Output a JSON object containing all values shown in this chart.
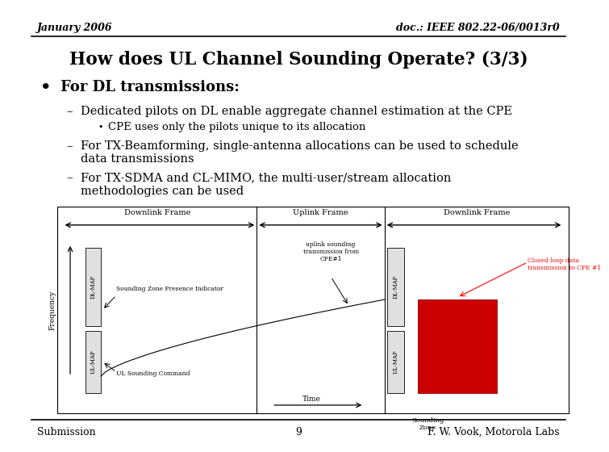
{
  "header_left": "January 2006",
  "header_right": "doc.: IEEE 802.22-06/0013r0",
  "title": "How does UL Channel Sounding Operate? (3/3)",
  "bullet_main": "For DL transmissions:",
  "sub1": "Dedicated pilots on DL enable aggregate channel estimation at the CPE",
  "sub1a": "CPE uses only the pilots unique to its allocation",
  "sub2": "For TX-Beamforming, single-antenna allocations can be used to schedule",
  "sub2b": "data transmissions",
  "sub3": "For TX-SDMA and CL-MIMO, the multi-user/stream allocation",
  "sub3b": "methodologies can be used",
  "footer_left": "Submission",
  "footer_center": "9",
  "footer_right": "F. W. Vook, Motorola Labs",
  "bg_color": "#ffffff",
  "text_color": "#000000",
  "dl_frame_label": "Downlink Frame",
  "ul_frame_label": "Uplink Frame",
  "freq_label": "Frequency",
  "dl_map_label": "DL-MAP",
  "ul_map_label": "UL-MAP",
  "time_label": "Time",
  "sounding_zone_label": "Sounding\nZone",
  "ul_sounding_label": "uplink sounding\ntransmission from\nCPE#1",
  "closed_loop_label": "Closed loop data\ntransmission to CPE #1",
  "sounding_presence_label": "Sounding Zone Presence Indicator",
  "ul_sounding_cmd_label": "UL Sounding Command"
}
